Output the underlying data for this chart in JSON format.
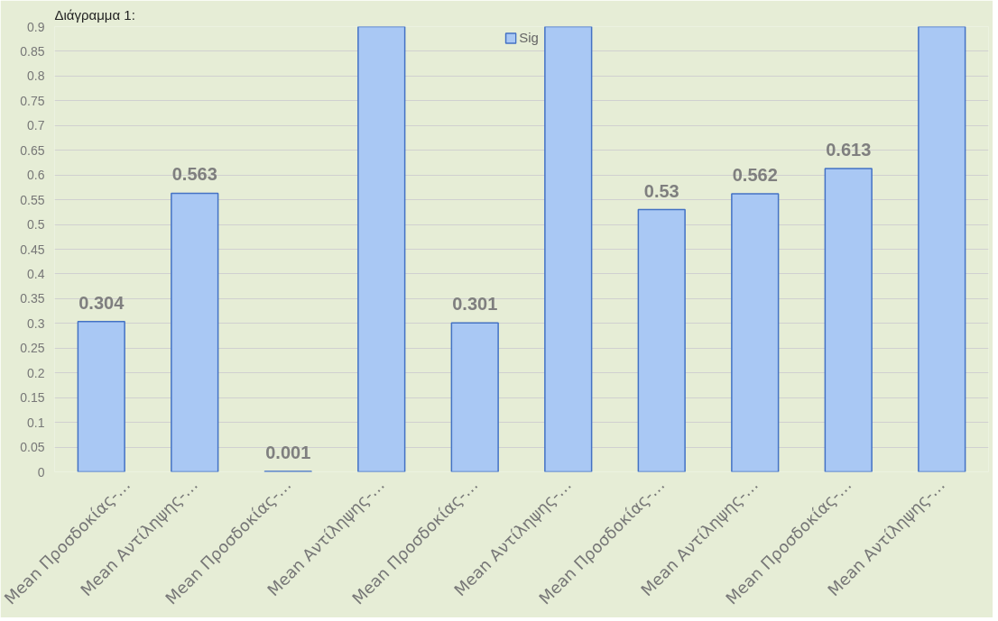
{
  "chart_data": {
    "type": "bar",
    "title": "Διάγραμμα 1:",
    "categories": [
      "Mean Προσδοκίας-…",
      "Mean Αντίληψης-…",
      "Mean Προσδοκίας-…",
      "Mean Αντίληψης-…",
      "Mean Προσδοκίας-…",
      "Mean Αντίληψης-…",
      "Mean Προσδοκίας-…",
      "Mean Αντίληψης-…",
      "Mean Προσδοκίας-…",
      "Mean Αντίληψης-…"
    ],
    "series": [
      {
        "name": "Sig",
        "color": "#a9c8f4",
        "values": [
          0.304,
          0.563,
          0.001,
          0.9,
          0.301,
          0.9,
          0.53,
          0.562,
          0.613,
          0.9
        ],
        "value_labels": [
          "0.304",
          "0.563",
          "0.001",
          null,
          "0.301",
          null,
          "0.53",
          "0.562",
          "0.613",
          null
        ]
      }
    ],
    "ylim": [
      0,
      0.9
    ],
    "yticks": [
      0,
      0.05,
      0.1,
      0.15,
      0.2,
      0.25,
      0.3,
      0.35,
      0.4,
      0.45,
      0.5,
      0.55,
      0.6,
      0.65,
      0.7,
      0.75,
      0.8,
      0.85,
      0.9
    ],
    "grid": "y",
    "legend": "top"
  }
}
